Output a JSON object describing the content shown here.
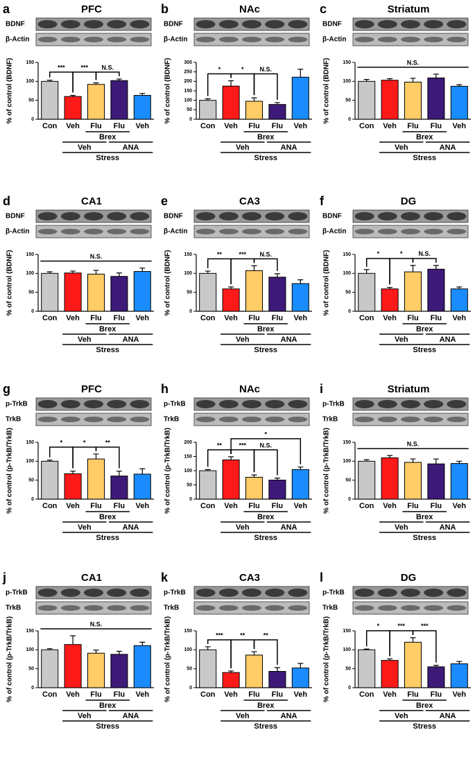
{
  "chart_data": [
    {
      "type": "bar",
      "label": "a",
      "title": "PFC",
      "blots": [
        "BDNF",
        "β-Actin"
      ],
      "ylabel": "% of control (BDNF)",
      "categories": [
        "Con",
        "Veh",
        "Flu",
        "Flu",
        "Veh"
      ],
      "values": [
        100,
        60,
        92,
        102,
        63
      ],
      "errors": [
        3,
        3,
        4,
        4,
        5
      ],
      "colors": [
        "#c8c8c8",
        "#ff1a1a",
        "#ffcc66",
        "#3d1a78",
        "#1a8cff"
      ],
      "ylim": [
        0,
        150
      ],
      "yticks": [
        0,
        50,
        100,
        150
      ],
      "comparisons": [
        {
          "from": 0,
          "to": 1,
          "label": "***"
        },
        {
          "from": 1,
          "to": 2,
          "label": "***"
        },
        {
          "from": 2,
          "to": 3,
          "label": "N.S."
        }
      ],
      "groups": [
        [
          {
            "label": "Brex",
            "from": 2,
            "to": 3
          }
        ],
        [
          {
            "label": "Veh",
            "from": 1,
            "to": 2
          },
          {
            "label": "ANA",
            "from": 3,
            "to": 4
          }
        ],
        [
          {
            "label": "Stress",
            "from": 1,
            "to": 4
          }
        ]
      ]
    },
    {
      "type": "bar",
      "label": "b",
      "title": "NAc",
      "blots": [
        "BDNF",
        "β-Actin"
      ],
      "ylabel": "% of control (BDNF)",
      "categories": [
        "Con",
        "Veh",
        "Flu",
        "Flu",
        "Veh"
      ],
      "values": [
        100,
        175,
        95,
        78,
        222
      ],
      "errors": [
        8,
        28,
        18,
        10,
        42
      ],
      "colors": [
        "#c8c8c8",
        "#ff1a1a",
        "#ffcc66",
        "#3d1a78",
        "#1a8cff"
      ],
      "ylim": [
        0,
        300
      ],
      "yticks": [
        0,
        50,
        100,
        150,
        200,
        250,
        300
      ],
      "comparisons": [
        {
          "from": 0,
          "to": 1,
          "label": "*"
        },
        {
          "from": 1,
          "to": 2,
          "label": "*"
        },
        {
          "from": 2,
          "to": 3,
          "label": "N.S."
        }
      ],
      "groups": [
        [
          {
            "label": "Brex",
            "from": 2,
            "to": 3
          }
        ],
        [
          {
            "label": "Veh",
            "from": 1,
            "to": 2
          },
          {
            "label": "ANA",
            "from": 3,
            "to": 4
          }
        ],
        [
          {
            "label": "Stress",
            "from": 1,
            "to": 4
          }
        ]
      ]
    },
    {
      "type": "bar",
      "label": "c",
      "title": "Striatum",
      "blots": [
        "BDNF",
        "β-Actin"
      ],
      "ylabel": "% of control (BDNF)",
      "categories": [
        "Con",
        "Veh",
        "Flu",
        "Flu",
        "Veh"
      ],
      "values": [
        100,
        103,
        98,
        109,
        87
      ],
      "errors": [
        5,
        4,
        10,
        10,
        4
      ],
      "colors": [
        "#c8c8c8",
        "#ff1a1a",
        "#ffcc66",
        "#3d1a78",
        "#1a8cff"
      ],
      "ylim": [
        0,
        150
      ],
      "yticks": [
        0,
        50,
        100,
        150
      ],
      "comparisons": [
        {
          "from": 0,
          "to": 4,
          "label": "N.S."
        }
      ],
      "groups": [
        [
          {
            "label": "Brex",
            "from": 2,
            "to": 3
          }
        ],
        [
          {
            "label": "Veh",
            "from": 1,
            "to": 2
          },
          {
            "label": "ANA",
            "from": 3,
            "to": 4
          }
        ],
        [
          {
            "label": "Stress",
            "from": 1,
            "to": 4
          }
        ]
      ]
    },
    {
      "type": "bar",
      "label": "d",
      "title": "CA1",
      "blots": [
        "BDNF",
        "β-Actin"
      ],
      "ylabel": "% of control (BDNF)",
      "categories": [
        "Con",
        "Veh",
        "Flu",
        "Flu",
        "Veh"
      ],
      "values": [
        100,
        101,
        98,
        92,
        105
      ],
      "errors": [
        4,
        5,
        10,
        9,
        9
      ],
      "colors": [
        "#c8c8c8",
        "#ff1a1a",
        "#ffcc66",
        "#3d1a78",
        "#1a8cff"
      ],
      "ylim": [
        0,
        150
      ],
      "yticks": [
        0,
        50,
        100,
        150
      ],
      "comparisons": [
        {
          "from": 0,
          "to": 4,
          "label": "N.S."
        }
      ],
      "groups": [
        [
          {
            "label": "Brex",
            "from": 2,
            "to": 3
          }
        ],
        [
          {
            "label": "Veh",
            "from": 1,
            "to": 2
          },
          {
            "label": "ANA",
            "from": 3,
            "to": 4
          }
        ],
        [
          {
            "label": "Stress",
            "from": 1,
            "to": 4
          }
        ]
      ]
    },
    {
      "type": "bar",
      "label": "e",
      "title": "CA3",
      "blots": [
        "BDNF",
        "β-Actin"
      ],
      "ylabel": "% of control (BDNF)",
      "categories": [
        "Con",
        "Veh",
        "Flu",
        "Flu",
        "Veh"
      ],
      "values": [
        100,
        59,
        107,
        90,
        73
      ],
      "errors": [
        6,
        5,
        13,
        9,
        10
      ],
      "colors": [
        "#c8c8c8",
        "#ff1a1a",
        "#ffcc66",
        "#3d1a78",
        "#1a8cff"
      ],
      "ylim": [
        0,
        150
      ],
      "yticks": [
        0,
        50,
        100,
        150
      ],
      "comparisons": [
        {
          "from": 0,
          "to": 1,
          "label": "**"
        },
        {
          "from": 1,
          "to": 2,
          "label": "***"
        },
        {
          "from": 2,
          "to": 3,
          "label": "N.S."
        }
      ],
      "groups": [
        [
          {
            "label": "Brex",
            "from": 2,
            "to": 3
          }
        ],
        [
          {
            "label": "Veh",
            "from": 1,
            "to": 2
          },
          {
            "label": "ANA",
            "from": 3,
            "to": 4
          }
        ],
        [
          {
            "label": "Stress",
            "from": 1,
            "to": 4
          }
        ]
      ]
    },
    {
      "type": "bar",
      "label": "f",
      "title": "DG",
      "blots": [
        "BDNF",
        "β-Actin"
      ],
      "ylabel": "% of control (BDNF)",
      "categories": [
        "Con",
        "Veh",
        "Flu",
        "Flu",
        "Veh"
      ],
      "values": [
        100,
        59,
        104,
        111,
        59
      ],
      "errors": [
        10,
        4,
        17,
        10,
        5
      ],
      "colors": [
        "#c8c8c8",
        "#ff1a1a",
        "#ffcc66",
        "#3d1a78",
        "#1a8cff"
      ],
      "ylim": [
        0,
        150
      ],
      "yticks": [
        0,
        50,
        100,
        150
      ],
      "comparisons": [
        {
          "from": 0,
          "to": 1,
          "label": "*"
        },
        {
          "from": 1,
          "to": 2,
          "label": "*"
        },
        {
          "from": 2,
          "to": 3,
          "label": "N.S."
        }
      ],
      "groups": [
        [
          {
            "label": "Brex",
            "from": 2,
            "to": 3
          }
        ],
        [
          {
            "label": "Veh",
            "from": 1,
            "to": 2
          },
          {
            "label": "ANA",
            "from": 3,
            "to": 4
          }
        ],
        [
          {
            "label": "Stress",
            "from": 1,
            "to": 4
          }
        ]
      ]
    },
    {
      "type": "bar",
      "label": "g",
      "title": "PFC",
      "blots": [
        "p-TrkB",
        "TrkB"
      ],
      "ylabel": "% of control (p-TrkB/TrkB)",
      "categories": [
        "Con",
        "Veh",
        "Flu",
        "Flu",
        "Veh"
      ],
      "values": [
        100,
        67,
        106,
        61,
        66
      ],
      "errors": [
        3,
        7,
        13,
        13,
        14
      ],
      "colors": [
        "#c8c8c8",
        "#ff1a1a",
        "#ffcc66",
        "#3d1a78",
        "#1a8cff"
      ],
      "ylim": [
        0,
        150
      ],
      "yticks": [
        0,
        50,
        100,
        150
      ],
      "comparisons": [
        {
          "from": 0,
          "to": 1,
          "label": "*"
        },
        {
          "from": 1,
          "to": 2,
          "label": "*"
        },
        {
          "from": 2,
          "to": 3,
          "label": "**"
        }
      ],
      "groups": [
        [
          {
            "label": "Brex",
            "from": 2,
            "to": 3
          }
        ],
        [
          {
            "label": "Veh",
            "from": 1,
            "to": 2
          },
          {
            "label": "ANA",
            "from": 3,
            "to": 4
          }
        ],
        [
          {
            "label": "Stress",
            "from": 1,
            "to": 4
          }
        ]
      ]
    },
    {
      "type": "bar",
      "label": "h",
      "title": "NAc",
      "blots": [
        "p-TrkB",
        "TrkB"
      ],
      "ylabel": "% of control (p-TrkB/TrkB)",
      "categories": [
        "Con",
        "Veh",
        "Flu",
        "Flu",
        "Veh"
      ],
      "values": [
        100,
        138,
        77,
        67,
        104
      ],
      "errors": [
        4,
        11,
        8,
        7,
        9
      ],
      "colors": [
        "#c8c8c8",
        "#ff1a1a",
        "#ffcc66",
        "#3d1a78",
        "#1a8cff"
      ],
      "ylim": [
        0,
        200
      ],
      "yticks": [
        0,
        50,
        100,
        150,
        200
      ],
      "comparisons": [
        {
          "from": 0,
          "to": 1,
          "label": "**"
        },
        {
          "from": 1,
          "to": 2,
          "label": "***"
        },
        {
          "from": 2,
          "to": 3,
          "label": "N.S."
        },
        {
          "from": 1,
          "to": 4,
          "label": "*"
        }
      ],
      "groups": [
        [
          {
            "label": "Brex",
            "from": 2,
            "to": 3
          }
        ],
        [
          {
            "label": "Veh",
            "from": 1,
            "to": 2
          },
          {
            "label": "ANA",
            "from": 3,
            "to": 4
          }
        ],
        [
          {
            "label": "Stress",
            "from": 1,
            "to": 4
          }
        ]
      ]
    },
    {
      "type": "bar",
      "label": "i",
      "title": "Striatum",
      "blots": [
        "p-TrkB",
        "TrkB"
      ],
      "ylabel": "% of control (p-TrkB/TrkB)",
      "categories": [
        "Con",
        "Veh",
        "Flu",
        "Flu",
        "Veh"
      ],
      "values": [
        100,
        109,
        97,
        93,
        94
      ],
      "errors": [
        4,
        6,
        9,
        13,
        6
      ],
      "colors": [
        "#c8c8c8",
        "#ff1a1a",
        "#ffcc66",
        "#3d1a78",
        "#1a8cff"
      ],
      "ylim": [
        0,
        150
      ],
      "yticks": [
        0,
        50,
        100,
        150
      ],
      "comparisons": [
        {
          "from": 0,
          "to": 4,
          "label": "N.S."
        }
      ],
      "groups": [
        [
          {
            "label": "Brex",
            "from": 2,
            "to": 3
          }
        ],
        [
          {
            "label": "Veh",
            "from": 1,
            "to": 2
          },
          {
            "label": "ANA",
            "from": 3,
            "to": 4
          }
        ],
        [
          {
            "label": "Stress",
            "from": 1,
            "to": 4
          }
        ]
      ]
    },
    {
      "type": "bar",
      "label": "j",
      "title": "CA1",
      "blots": [
        "p-TrkB",
        "TrkB"
      ],
      "ylabel": "% of control (p-TrkB/TrkB)",
      "categories": [
        "Con",
        "Veh",
        "Flu",
        "Flu",
        "Veh"
      ],
      "values": [
        100,
        114,
        91,
        88,
        111
      ],
      "errors": [
        3,
        23,
        8,
        8,
        9
      ],
      "colors": [
        "#c8c8c8",
        "#ff1a1a",
        "#ffcc66",
        "#3d1a78",
        "#1a8cff"
      ],
      "ylim": [
        0,
        150
      ],
      "yticks": [
        0,
        50,
        100,
        150
      ],
      "comparisons": [
        {
          "from": 0,
          "to": 4,
          "label": "N.S."
        }
      ],
      "groups": [
        [
          {
            "label": "Brex",
            "from": 2,
            "to": 3
          }
        ],
        [
          {
            "label": "Veh",
            "from": 1,
            "to": 2
          },
          {
            "label": "ANA",
            "from": 3,
            "to": 4
          }
        ],
        [
          {
            "label": "Stress",
            "from": 1,
            "to": 4
          }
        ]
      ]
    },
    {
      "type": "bar",
      "label": "k",
      "title": "CA3",
      "blots": [
        "p-TrkB",
        "TrkB"
      ],
      "ylabel": "% of control (p-TrkB/TrkB)",
      "categories": [
        "Con",
        "Veh",
        "Flu",
        "Flu",
        "Veh"
      ],
      "values": [
        100,
        40,
        86,
        43,
        52
      ],
      "errors": [
        8,
        4,
        9,
        10,
        12
      ],
      "colors": [
        "#c8c8c8",
        "#ff1a1a",
        "#ffcc66",
        "#3d1a78",
        "#1a8cff"
      ],
      "ylim": [
        0,
        150
      ],
      "yticks": [
        0,
        50,
        100,
        150
      ],
      "comparisons": [
        {
          "from": 0,
          "to": 1,
          "label": "***"
        },
        {
          "from": 1,
          "to": 2,
          "label": "**"
        },
        {
          "from": 2,
          "to": 3,
          "label": "**"
        }
      ],
      "groups": [
        [
          {
            "label": "Brex",
            "from": 2,
            "to": 3
          }
        ],
        [
          {
            "label": "Veh",
            "from": 1,
            "to": 2
          },
          {
            "label": "ANA",
            "from": 3,
            "to": 4
          }
        ],
        [
          {
            "label": "Stress",
            "from": 1,
            "to": 4
          }
        ]
      ]
    },
    {
      "type": "bar",
      "label": "l",
      "title": "DG",
      "blots": [
        "p-TrkB",
        "TrkB"
      ],
      "ylabel": "% of control (p-TrkB/TrkB)",
      "categories": [
        "Con",
        "Veh",
        "Flu",
        "Flu",
        "Veh"
      ],
      "values": [
        100,
        72,
        120,
        55,
        63
      ],
      "errors": [
        2,
        4,
        12,
        4,
        6
      ],
      "colors": [
        "#c8c8c8",
        "#ff1a1a",
        "#ffcc66",
        "#3d1a78",
        "#1a8cff"
      ],
      "ylim": [
        0,
        150
      ],
      "yticks": [
        0,
        50,
        100,
        150
      ],
      "comparisons": [
        {
          "from": 0,
          "to": 1,
          "label": "*"
        },
        {
          "from": 1,
          "to": 2,
          "label": "***"
        },
        {
          "from": 2,
          "to": 3,
          "label": "***"
        }
      ],
      "groups": [
        [
          {
            "label": "Brex",
            "from": 2,
            "to": 3
          }
        ],
        [
          {
            "label": "Veh",
            "from": 1,
            "to": 2
          },
          {
            "label": "ANA",
            "from": 3,
            "to": 4
          }
        ],
        [
          {
            "label": "Stress",
            "from": 1,
            "to": 4
          }
        ]
      ]
    }
  ]
}
